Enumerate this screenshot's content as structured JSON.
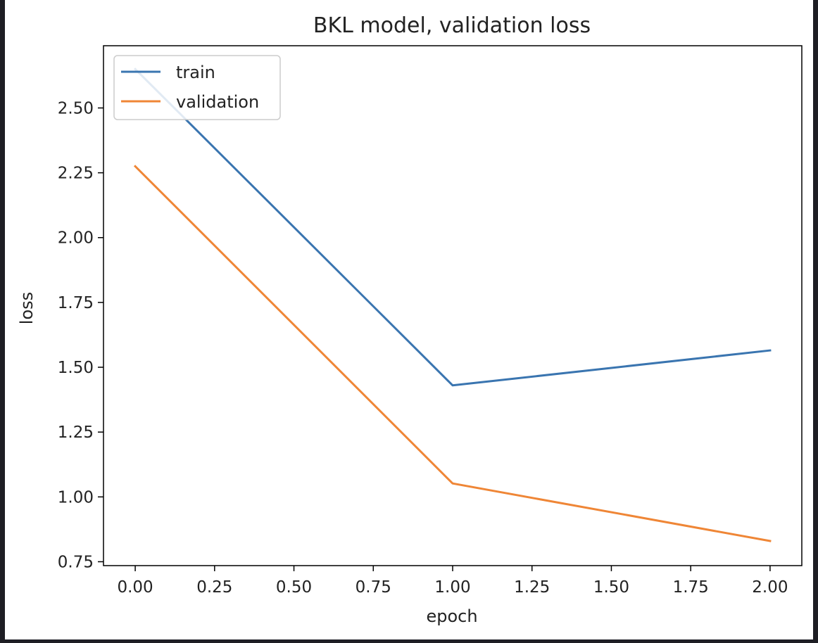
{
  "chart_data": {
    "type": "line",
    "title": "BKL model, validation loss",
    "xlabel": "epoch",
    "ylabel": "loss",
    "xlim": [
      -0.1,
      2.1
    ],
    "ylim": [
      0.735,
      2.74
    ],
    "x_ticks": [
      "0.00",
      "0.25",
      "0.50",
      "0.75",
      "1.00",
      "1.25",
      "1.50",
      "1.75",
      "2.00"
    ],
    "y_ticks": [
      "0.75",
      "1.00",
      "1.25",
      "1.50",
      "1.75",
      "2.00",
      "2.25",
      "2.50"
    ],
    "legend_position": "upper-left",
    "series": [
      {
        "name": "train",
        "color": "#3a75b0",
        "x": [
          0,
          1,
          2
        ],
        "y": [
          2.65,
          1.43,
          1.565
        ]
      },
      {
        "name": "validation",
        "color": "#ef8636",
        "x": [
          0,
          1,
          2
        ],
        "y": [
          2.275,
          1.052,
          0.83
        ]
      }
    ]
  }
}
